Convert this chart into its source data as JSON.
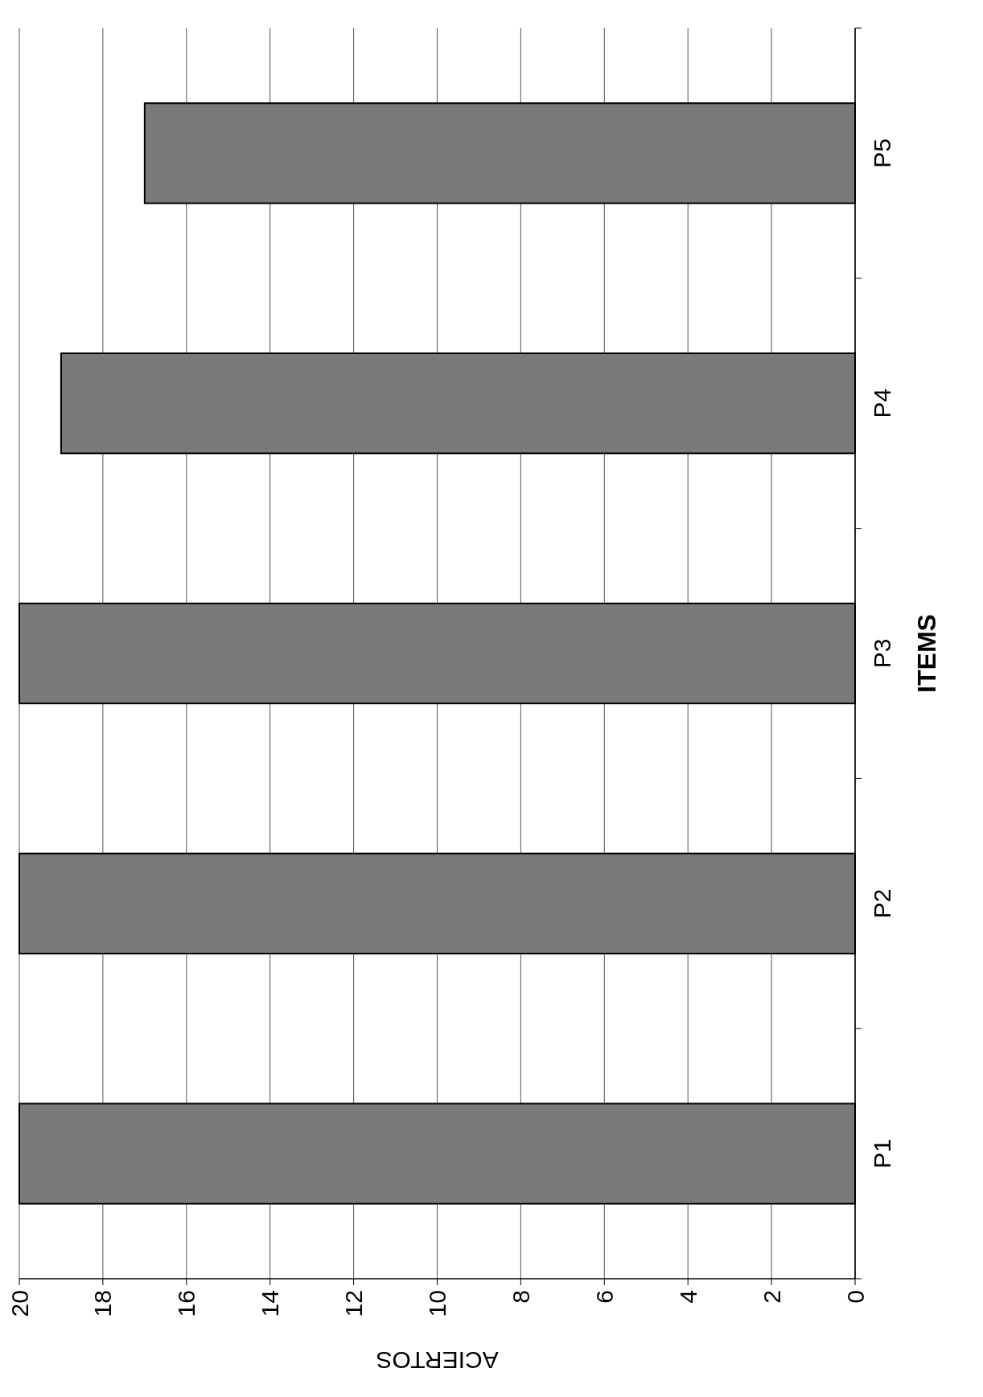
{
  "chart_data": {
    "type": "bar",
    "orientation": "horizontal",
    "xlabel": "ACIERTOS",
    "ylabel": "ITEMS",
    "categories": [
      "P5",
      "P4",
      "P3",
      "P2",
      "P1"
    ],
    "values": [
      17,
      19,
      20,
      20,
      20
    ],
    "color": "#7a7a7a",
    "xlim": [
      20,
      0
    ],
    "xticks": [
      20,
      18,
      16,
      14,
      12,
      10,
      8,
      6,
      4,
      2,
      0
    ],
    "grid": "x"
  }
}
